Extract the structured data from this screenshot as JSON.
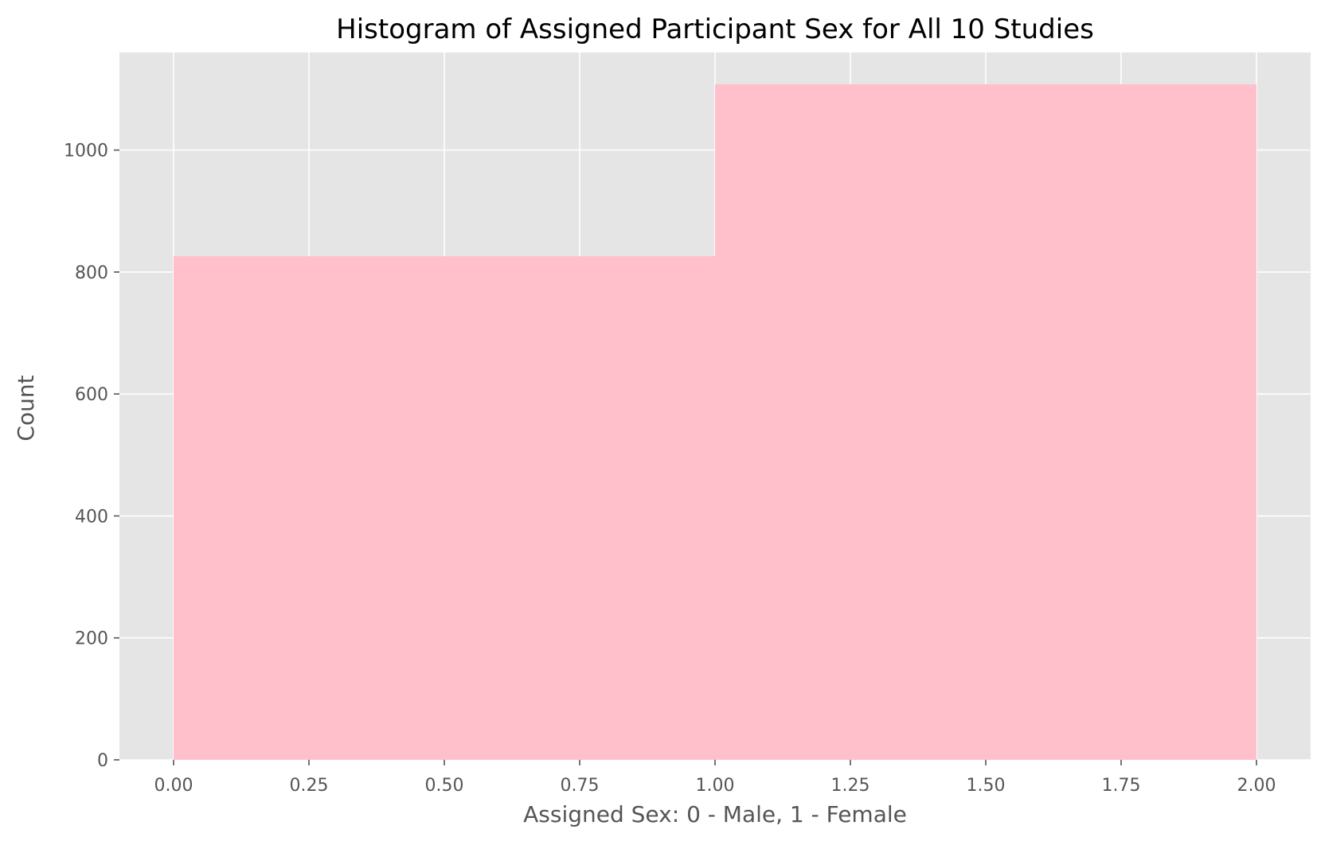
{
  "chart_data": {
    "type": "bar",
    "title": "Histogram of Assigned Participant Sex for All 10 Studies",
    "xlabel": "Assigned Sex: 0 - Male, 1 - Female",
    "ylabel": "Count",
    "bins": [
      {
        "x0": 0.0,
        "x1": 1.0,
        "value": 826
      },
      {
        "x0": 1.0,
        "x1": 2.0,
        "value": 1108
      }
    ],
    "xlim": [
      -0.1,
      2.1
    ],
    "ylim": [
      0,
      1160
    ],
    "x_ticks": [
      "0.00",
      "0.25",
      "0.50",
      "0.75",
      "1.00",
      "1.25",
      "1.50",
      "1.75",
      "2.00"
    ],
    "y_ticks": [
      "0",
      "200",
      "400",
      "600",
      "800",
      "1000"
    ],
    "grid": true,
    "colors": {
      "bar": "#ffc0cb",
      "plot_background": "#e5e5e5",
      "grid": "#ffffff"
    }
  }
}
